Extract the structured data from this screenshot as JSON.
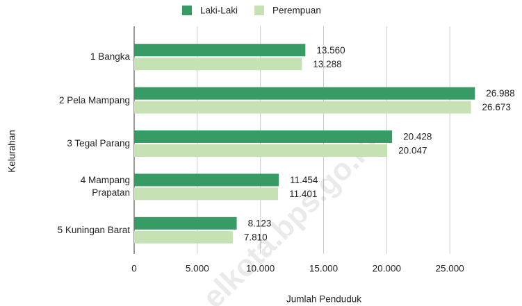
{
  "chart_data": {
    "type": "bar",
    "orientation": "horizontal",
    "x_label": "Jumlah Penduduk",
    "y_label": "Kelurahan",
    "categories": [
      "1 Bangka",
      "2 Pela Mampang",
      "3 Tegal Parang",
      "4 Mampang\nPrapatan",
      "5 Kuningan Barat"
    ],
    "series": [
      {
        "name": "Laki-Laki",
        "color": "#379b65",
        "values": [
          13560,
          26988,
          20428,
          11454,
          8123
        ],
        "value_labels": [
          "13.560",
          "26.988",
          "20.428",
          "11.454",
          "8.123"
        ]
      },
      {
        "name": "Perempuan",
        "color": "#c6e2b5",
        "values": [
          13288,
          26673,
          20047,
          11401,
          7810
        ],
        "value_labels": [
          "13.288",
          "26.673",
          "20.047",
          "11.401",
          "7.810"
        ]
      }
    ],
    "xlim": [
      0,
      30000
    ],
    "xticks": [
      0,
      {
        "value": 5000,
        "label": "5.000"
      },
      {
        "value": 10000,
        "label": "10.000"
      },
      {
        "value": 15000,
        "label": "15.000"
      },
      {
        "value": 20000,
        "label": "20.000"
      },
      {
        "value": 25000,
        "label": "25.000"
      }
    ],
    "grid": true,
    "legend": "top",
    "watermark": "elkota.bps.go.id"
  }
}
